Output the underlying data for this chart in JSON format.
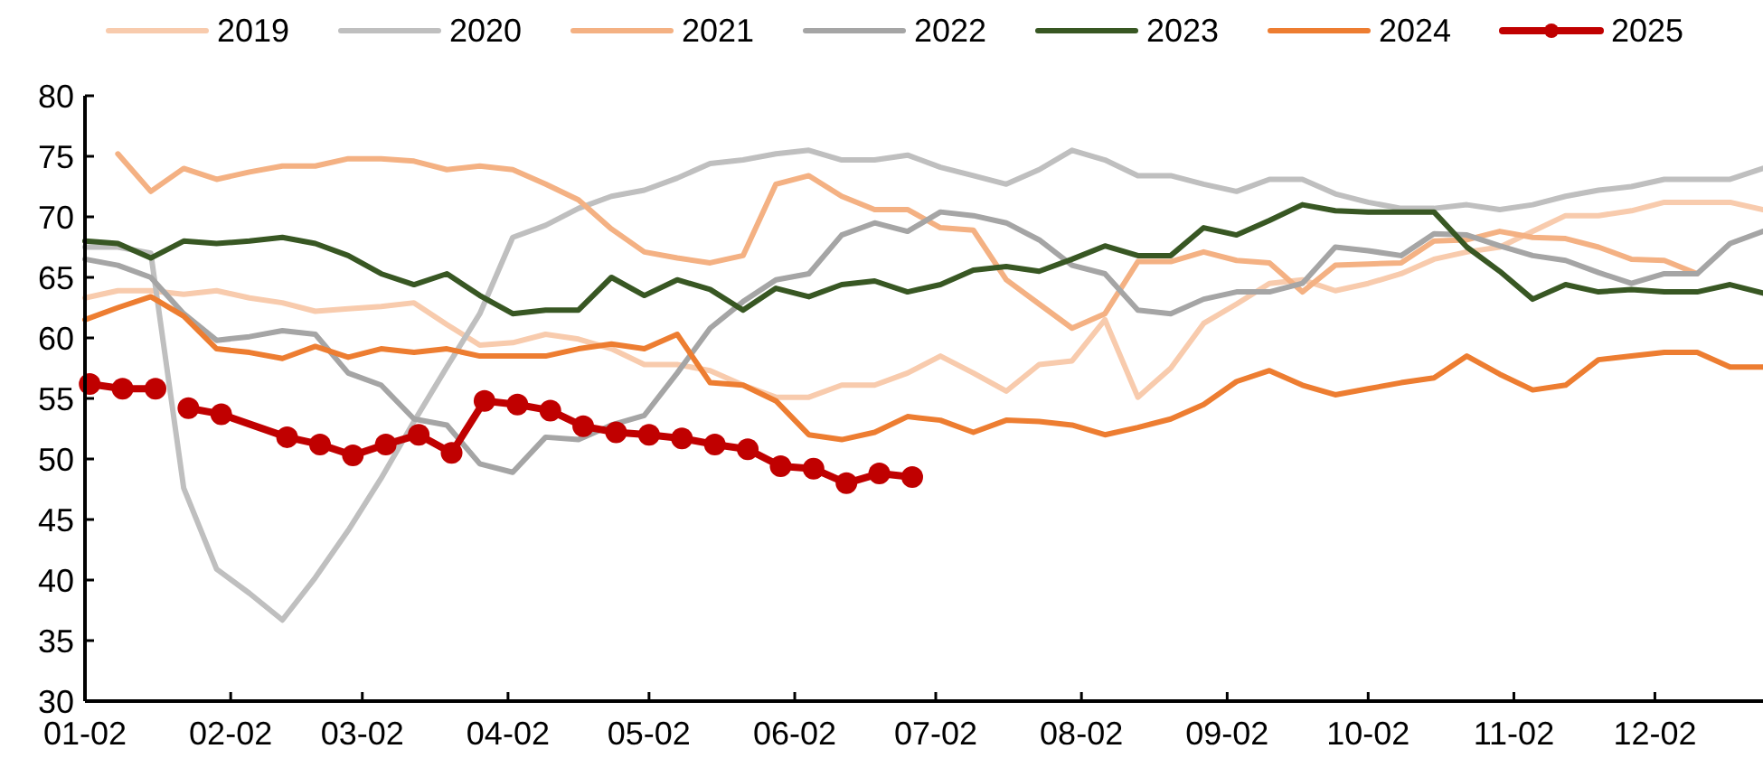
{
  "chart_data": {
    "type": "line",
    "legend": "top",
    "grid": false,
    "ylim": [
      30,
      80
    ],
    "yticks": [
      30,
      35,
      40,
      45,
      50,
      55,
      60,
      65,
      70,
      75,
      80
    ],
    "xlim": [
      "--01-02",
      "--12-25"
    ],
    "xticks": [
      {
        "value": "--01-02",
        "label": "01-02"
      },
      {
        "value": "--02-02",
        "label": "02-02"
      },
      {
        "value": "--03-02",
        "label": "03-02"
      },
      {
        "value": "--04-02",
        "label": "04-02"
      },
      {
        "value": "--05-02",
        "label": "05-02"
      },
      {
        "value": "--06-02",
        "label": "06-02"
      },
      {
        "value": "--07-02",
        "label": "07-02"
      },
      {
        "value": "--08-02",
        "label": "08-02"
      },
      {
        "value": "--09-02",
        "label": "09-02"
      },
      {
        "value": "--10-02",
        "label": "10-02"
      },
      {
        "value": "--11-02",
        "label": "11-02"
      },
      {
        "value": "--12-02",
        "label": "12-02"
      }
    ],
    "x": [
      "--01-02",
      "--01-09",
      "--01-16",
      "--01-23",
      "--01-30",
      "--02-06",
      "--02-13",
      "--02-20",
      "--02-27",
      "--03-06",
      "--03-13",
      "--03-20",
      "--03-27",
      "--04-03",
      "--04-10",
      "--04-17",
      "--04-24",
      "--05-01",
      "--05-08",
      "--05-15",
      "--05-22",
      "--05-29",
      "--06-05",
      "--06-12",
      "--06-19",
      "--06-26",
      "--07-03",
      "--07-10",
      "--07-17",
      "--07-24",
      "--07-31",
      "--08-07",
      "--08-14",
      "--08-21",
      "--08-28",
      "--09-04",
      "--09-11",
      "--09-18",
      "--09-25",
      "--10-02",
      "--10-09",
      "--10-16",
      "--10-23",
      "--10-30",
      "--11-06",
      "--11-13",
      "--11-20",
      "--11-27",
      "--12-04",
      "--12-11",
      "--12-18",
      "--12-25"
    ],
    "series": [
      {
        "name": "2019",
        "color": "#f8cbad",
        "marker": "none",
        "values": [
          63.3,
          63.9,
          63.9,
          63.6,
          63.9,
          63.3,
          62.9,
          62.2,
          62.4,
          62.6,
          62.9,
          61.1,
          59.4,
          59.6,
          60.3,
          59.9,
          59.1,
          57.8,
          57.8,
          57.3,
          56.1,
          55.1,
          55.1,
          56.1,
          56.1,
          57.1,
          58.5,
          57.1,
          55.6,
          57.8,
          58.1,
          61.5,
          55.1,
          57.5,
          61.2,
          62.8,
          64.5,
          64.8,
          63.9,
          64.5,
          65.3,
          66.5,
          67.1,
          67.5,
          68.8,
          70.1,
          70.1,
          70.5,
          71.2,
          71.2,
          71.2,
          70.6
        ]
      },
      {
        "name": "2020",
        "color": "#bfbfbf",
        "marker": "none",
        "values": [
          67.5,
          67.5,
          67.0,
          47.6,
          40.9,
          38.9,
          36.7,
          40.2,
          44.1,
          48.4,
          53.1,
          57.6,
          62.0,
          68.3,
          69.3,
          70.7,
          71.7,
          72.2,
          73.2,
          74.4,
          74.7,
          75.2,
          75.5,
          74.7,
          74.7,
          75.1,
          74.1,
          73.4,
          72.7,
          73.9,
          75.5,
          74.7,
          73.4,
          73.4,
          72.7,
          72.1,
          73.1,
          73.1,
          71.9,
          71.2,
          70.7,
          70.7,
          71.0,
          70.6,
          71.0,
          71.7,
          72.2,
          72.5,
          73.1,
          73.1,
          73.1,
          74.0
        ]
      },
      {
        "name": "2021",
        "color": "#f4b183",
        "marker": "none",
        "values": [
          null,
          75.2,
          72.1,
          74.0,
          73.1,
          73.7,
          74.2,
          74.2,
          74.8,
          74.8,
          74.6,
          73.9,
          74.2,
          73.9,
          72.7,
          71.4,
          69.0,
          67.1,
          66.6,
          66.2,
          66.8,
          72.7,
          73.4,
          71.7,
          70.6,
          70.6,
          69.1,
          68.9,
          64.8,
          62.8,
          60.8,
          62.0,
          66.3,
          66.3,
          67.1,
          66.4,
          66.2,
          63.8,
          66.0,
          66.1,
          66.2,
          68.0,
          68.1,
          68.8,
          68.3,
          68.2,
          67.5,
          66.5,
          66.4,
          65.3,
          null,
          null
        ]
      },
      {
        "name": "2022",
        "color": "#a5a5a5",
        "marker": "none",
        "values": [
          66.5,
          66.0,
          65.0,
          62.0,
          59.8,
          60.1,
          60.6,
          60.3,
          57.1,
          56.1,
          53.3,
          52.8,
          49.6,
          48.9,
          51.8,
          51.6,
          52.8,
          53.6,
          57.1,
          60.8,
          63.0,
          64.8,
          65.3,
          68.5,
          69.5,
          68.8,
          70.4,
          70.1,
          69.5,
          68.1,
          66.0,
          65.3,
          62.3,
          62.0,
          63.2,
          63.8,
          63.8,
          64.5,
          67.5,
          67.2,
          66.8,
          68.6,
          68.5,
          67.6,
          66.8,
          66.4,
          65.4,
          64.5,
          65.3,
          65.3,
          67.8,
          68.8
        ]
      },
      {
        "name": "2023",
        "color": "#385723",
        "marker": "none",
        "values": [
          68.0,
          67.8,
          66.6,
          68.0,
          67.8,
          68.0,
          68.3,
          67.8,
          66.8,
          65.3,
          64.4,
          65.3,
          63.5,
          62.0,
          62.3,
          62.3,
          65.0,
          63.5,
          64.8,
          64.0,
          62.3,
          64.1,
          63.4,
          64.4,
          64.7,
          63.8,
          64.4,
          65.6,
          65.9,
          65.5,
          66.5,
          67.6,
          66.8,
          66.8,
          69.1,
          68.5,
          69.7,
          71.0,
          70.5,
          70.4,
          70.4,
          70.4,
          67.5,
          65.5,
          63.2,
          64.4,
          63.8,
          64.0,
          63.8,
          63.8,
          64.4,
          63.7
        ]
      },
      {
        "name": "2024",
        "color": "#ed7d31",
        "marker": "none",
        "values": [
          61.5,
          62.5,
          63.4,
          61.8,
          59.1,
          58.8,
          58.3,
          59.3,
          58.4,
          59.1,
          58.8,
          59.1,
          58.5,
          58.5,
          58.5,
          59.1,
          59.5,
          59.1,
          60.3,
          56.3,
          56.1,
          54.8,
          52.0,
          51.6,
          52.2,
          53.5,
          53.2,
          52.2,
          53.2,
          53.1,
          52.8,
          52.0,
          52.6,
          53.3,
          54.5,
          56.4,
          57.3,
          56.1,
          55.3,
          55.8,
          56.3,
          56.7,
          58.5,
          57.0,
          55.7,
          56.1,
          58.2,
          58.5,
          58.8,
          58.8,
          57.6,
          57.6
        ]
      },
      {
        "name": "2025",
        "color": "#c00000",
        "marker": "circle",
        "x": [
          "--01-03",
          "--01-10",
          "--01-17",
          "--01-20",
          "--01-24",
          "--01-31",
          "--02-14",
          "--02-21",
          "--02-28",
          "--03-07",
          "--03-14",
          "--03-21",
          "--03-28",
          "--04-04",
          "--04-11",
          "--04-18",
          "--04-25",
          "--05-02",
          "--05-09",
          "--05-16",
          "--05-23",
          "--05-30",
          "--06-06",
          "--06-13",
          "--06-20",
          "--06-27"
        ],
        "values": [
          56.2,
          55.8,
          55.8,
          null,
          54.2,
          53.7,
          51.8,
          51.2,
          50.3,
          51.2,
          52.0,
          50.5,
          54.8,
          54.5,
          54.0,
          52.7,
          52.2,
          52.0,
          51.7,
          51.2,
          50.8,
          49.4,
          49.2,
          48.0,
          48.8,
          48.5
        ]
      }
    ]
  }
}
